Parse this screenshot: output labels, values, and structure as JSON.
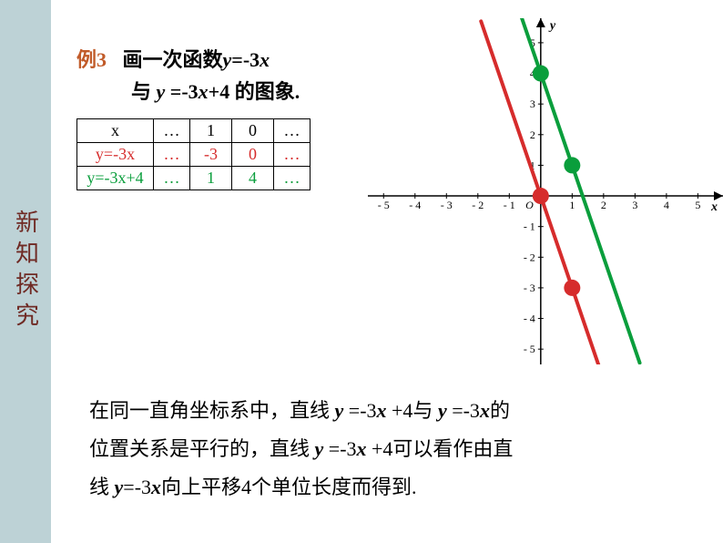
{
  "sidebar": {
    "label": "新知探究"
  },
  "problem": {
    "exLabel": "例3",
    "line1_a": "画一次函数",
    "line1_b": "y",
    "line1_c": "=-3",
    "line1_d": "x",
    "line2_a": "与 ",
    "line2_b": "y",
    "line2_c": " =-3",
    "line2_d": "x",
    "line2_e": "+4 的图象."
  },
  "table": {
    "headers": [
      "x",
      "…",
      "1",
      "0",
      "…"
    ],
    "row_red": [
      "y=-3x",
      "…",
      "-3",
      "0",
      "…"
    ],
    "row_green": [
      "y=-3x+4",
      "…",
      "1",
      "4",
      "…"
    ]
  },
  "chart": {
    "type": "line",
    "background_color": "#ffffff",
    "axis_color": "#000000",
    "tick_color": "#000000",
    "tick_fontsize": 12,
    "label_fontsize": 14,
    "xlim": [
      -5.5,
      5.8
    ],
    "ylim": [
      -5.5,
      5.8
    ],
    "xticks": [
      -5,
      -4,
      -3,
      -2,
      -1,
      1,
      2,
      3,
      4,
      5
    ],
    "yticks": [
      -5,
      -4,
      -3,
      -2,
      -1,
      1,
      2,
      3,
      4,
      5
    ],
    "origin_label": "O",
    "x_axis_label": "x",
    "y_axis_label": "y",
    "series": [
      {
        "name": "y=-3x",
        "color": "#d62c2c",
        "line_width": 4,
        "points_line": [
          [
            -1.9,
            5.7
          ],
          [
            1.9,
            -5.7
          ]
        ],
        "markers": [
          [
            0,
            0
          ],
          [
            1,
            -3
          ]
        ],
        "marker_radius": 9
      },
      {
        "name": "y=-3x+4",
        "color": "#0a9e3c",
        "line_width": 4,
        "points_line": [
          [
            -0.6,
            5.8
          ],
          [
            3.15,
            -5.45
          ]
        ],
        "markers": [
          [
            0,
            4
          ],
          [
            1,
            1
          ]
        ],
        "marker_radius": 9
      }
    ]
  },
  "conclusion": {
    "t1": "在同一直角坐标系中，直线 ",
    "y1": "y",
    "t2": " =-3",
    "x1": "x",
    "t3": " +4与 ",
    "y2": "y",
    "t4": " =-3",
    "x2": "x",
    "t5": "的",
    "t6": "位置关系是平行的，直线 ",
    "y3": "y",
    "t7": " =-3",
    "x3": "x",
    "t8": " +4可以看作由直",
    "t9": "线 ",
    "y4": "y",
    "t10": "=-3",
    "x4": "x",
    "t11": "向上平移4个单位长度而得到."
  }
}
